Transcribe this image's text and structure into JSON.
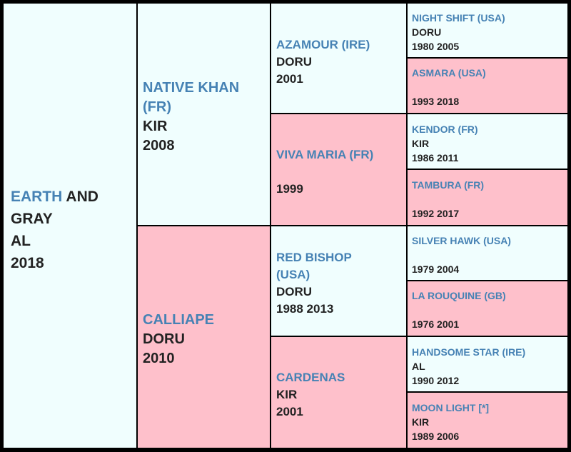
{
  "subject": {
    "name": "EARTH",
    "name_rest": " AND GRAY",
    "color": "AL",
    "years": "2018"
  },
  "sire": {
    "name": "NATIVE KHAN (FR)",
    "color": "KIR",
    "years": "2008"
  },
  "dam": {
    "name": "CALLIAPE",
    "color": "DORU",
    "years": "2010"
  },
  "ss": {
    "name": "AZAMOUR (IRE)",
    "color": "DORU",
    "years": "2001"
  },
  "sd": {
    "name": "VIVA MARIA (FR)",
    "color": "",
    "years": "1999"
  },
  "ds": {
    "name": "RED BISHOP (USA)",
    "color": "DORU",
    "years": "1988 2013"
  },
  "dd": {
    "name": "CARDENAS",
    "color": "KIR",
    "years": "2001"
  },
  "sss": {
    "name": "NIGHT SHIFT (USA)",
    "color": "DORU",
    "years": "1980 2005"
  },
  "ssd": {
    "name": "ASMARA (USA)",
    "color": "",
    "years": "1993 2018"
  },
  "sds": {
    "name": "KENDOR (FR)",
    "color": "KIR",
    "years": "1986 2011"
  },
  "sdd": {
    "name": "TAMBURA (FR)",
    "color": "",
    "years": "1992 2017"
  },
  "dss": {
    "name": "SILVER HAWK (USA)",
    "color": "",
    "years": "1979 2004"
  },
  "dsd": {
    "name": "LA ROUQUINE (GB)",
    "color": "",
    "years": "1976 2001"
  },
  "dds": {
    "name": "HANDSOME STAR (IRE)",
    "color": "AL",
    "years": "1990 2012"
  },
  "ddd": {
    "name": "MOON LIGHT [*]",
    "color": "KIR",
    "years": "1989 2006"
  },
  "colors": {
    "male_bg": "#f0fefe",
    "female_bg": "#fec0cb",
    "name": "#4682b4",
    "text": "#222222",
    "border": "#000000"
  }
}
